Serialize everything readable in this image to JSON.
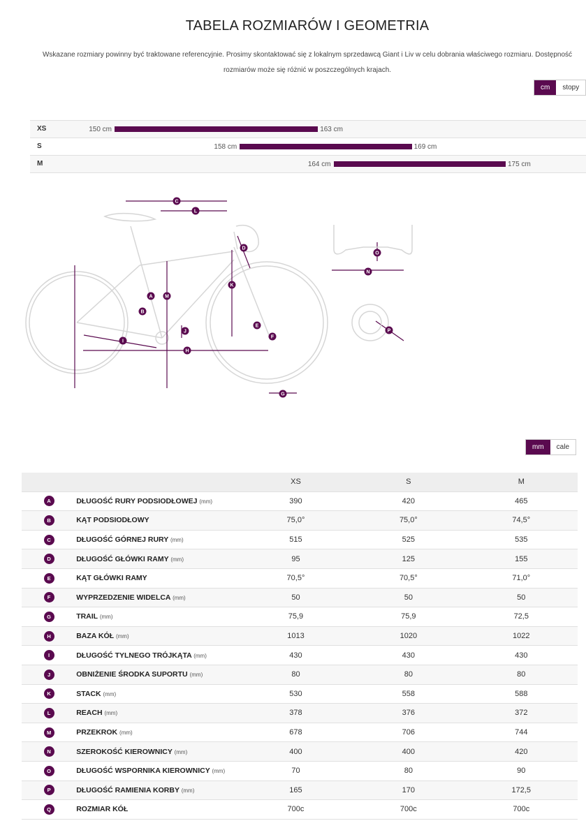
{
  "page": {
    "title": "TABELA ROZMIARÓW I GEOMETRIA",
    "intro_line1": "Wskazane rozmiary powinny być traktowane referencyjnie. Prosimy skontaktować się z lokalnym sprzedawcą Giant i Liv w celu dobrania właściwego rozmiaru. Dostępność",
    "intro_line2": "rozmiarów może się różnić w poszczególnych krajach."
  },
  "height_units": {
    "active": "cm",
    "inactive": "stopy"
  },
  "size_chart": [
    {
      "size": "XS",
      "low_label": "150 cm",
      "high_label": "163 cm",
      "low": 150,
      "high": 163
    },
    {
      "size": "S",
      "low_label": "158 cm",
      "high_label": "169 cm",
      "low": 158,
      "high": 169
    },
    {
      "size": "M",
      "low_label": "164 cm",
      "high_label": "175 cm",
      "low": 164,
      "high": 175
    }
  ],
  "diagram": {
    "letters": [
      "A",
      "B",
      "C",
      "D",
      "E",
      "F",
      "G",
      "H",
      "I",
      "J",
      "K",
      "L",
      "M",
      "N",
      "O",
      "P"
    ],
    "accent": "#5a0a4f"
  },
  "geometry_units": {
    "active": "mm",
    "inactive": "cale"
  },
  "geometry": {
    "sizes": [
      "XS",
      "S",
      "M"
    ],
    "rows": [
      {
        "letter": "A",
        "name": "DŁUGOŚĆ RURY PODSIODŁOWEJ",
        "unit": "(mm)",
        "values": [
          "390",
          "420",
          "465"
        ]
      },
      {
        "letter": "B",
        "name": "KĄT PODSIODŁOWY",
        "unit": "",
        "values": [
          "75,0°",
          "75,0°",
          "74,5°"
        ]
      },
      {
        "letter": "C",
        "name": "DŁUGOŚĆ GÓRNEJ RURY",
        "unit": "(mm)",
        "values": [
          "515",
          "525",
          "535"
        ]
      },
      {
        "letter": "D",
        "name": "DŁUGOŚĆ GŁÓWKI RAMY",
        "unit": "(mm)",
        "values": [
          "95",
          "125",
          "155"
        ]
      },
      {
        "letter": "E",
        "name": "KĄT GŁÓWKI RAMY",
        "unit": "",
        "values": [
          "70,5°",
          "70,5°",
          "71,0°"
        ]
      },
      {
        "letter": "F",
        "name": "WYPRZEDZENIE WIDELCA",
        "unit": "(mm)",
        "values": [
          "50",
          "50",
          "50"
        ]
      },
      {
        "letter": "G",
        "name": "TRAIL",
        "unit": "(mm)",
        "values": [
          "75,9",
          "75,9",
          "72,5"
        ]
      },
      {
        "letter": "H",
        "name": "BAZA KÓŁ",
        "unit": "(mm)",
        "values": [
          "1013",
          "1020",
          "1022"
        ]
      },
      {
        "letter": "I",
        "name": "DŁUGOŚĆ TYLNEGO TRÓJKĄTA",
        "unit": "(mm)",
        "values": [
          "430",
          "430",
          "430"
        ]
      },
      {
        "letter": "J",
        "name": "OBNIŻENIE ŚRODKA SUPORTU",
        "unit": "(mm)",
        "values": [
          "80",
          "80",
          "80"
        ]
      },
      {
        "letter": "K",
        "name": "STACK",
        "unit": "(mm)",
        "values": [
          "530",
          "558",
          "588"
        ]
      },
      {
        "letter": "L",
        "name": "REACH",
        "unit": "(mm)",
        "values": [
          "378",
          "376",
          "372"
        ]
      },
      {
        "letter": "M",
        "name": "PRZEKROK",
        "unit": "(mm)",
        "values": [
          "678",
          "706",
          "744"
        ]
      },
      {
        "letter": "N",
        "name": "SZEROKOŚĆ KIEROWNICY",
        "unit": "(mm)",
        "values": [
          "400",
          "400",
          "420"
        ]
      },
      {
        "letter": "O",
        "name": "DŁUGOŚĆ WSPORNIKA KIEROWNICY",
        "unit": "(mm)",
        "values": [
          "70",
          "80",
          "90"
        ]
      },
      {
        "letter": "P",
        "name": "DŁUGOŚĆ RAMIENIA KORBY",
        "unit": "(mm)",
        "values": [
          "165",
          "170",
          "172,5"
        ]
      },
      {
        "letter": "Q",
        "name": "ROZMIAR KÓŁ",
        "unit": "",
        "values": [
          "700c",
          "700c",
          "700c"
        ]
      }
    ]
  }
}
